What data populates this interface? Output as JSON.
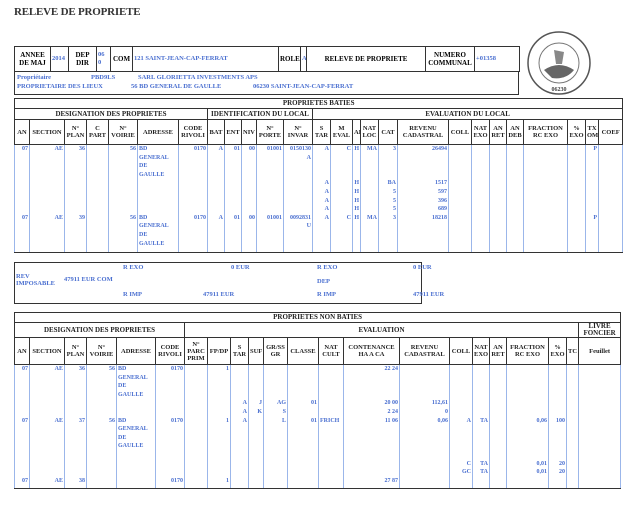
{
  "title": "RELEVE DE PROPRIETE",
  "header": {
    "annee_label": "ANNEE DE MAJ",
    "annee": "2014",
    "dep_label": "DEP DIR",
    "dep": "06 0",
    "com_label": "COM",
    "com": "121 SAINT-JEAN-CAP-FERRAT",
    "role_label": "ROLE",
    "role": "A",
    "doc_title": "RELEVE DE PROPRIETE",
    "numero_label": "NUMERO COMMUNAL",
    "numero": "+01358"
  },
  "owner": {
    "label": "Propriétaire",
    "code": "PBD9LS",
    "name": "SARL GLORIETTA INVESTMENTS APS",
    "role": "PROPRIETAIRE DES LIEUX",
    "address": "56 BD GENERAL DE GAULLE",
    "city": "06230 SAINT-JEAN-CAP-FERRAT"
  },
  "stamp": {
    "text": "MAIRIE DE SAINT-JEAN-CAP",
    "postcode": "06230"
  },
  "baties": {
    "title": "PROPRIETES BATIES",
    "groups": [
      "DESIGNATION DES PROPRIETES",
      "IDENTIFICATION DU LOCAL",
      "EVALUATION DU LOCAL"
    ],
    "columns": [
      {
        "key": "an",
        "label": "AN"
      },
      {
        "key": "section",
        "label": "SECTION"
      },
      {
        "key": "plan",
        "label": "N° PLAN"
      },
      {
        "key": "cpart",
        "label": "C PART"
      },
      {
        "key": "voirie",
        "label": "N° VOIRIE"
      },
      {
        "key": "adresse",
        "label": "ADRESSE"
      },
      {
        "key": "rivoli",
        "label": "CODE RIVOLI"
      },
      {
        "key": "bat",
        "label": "BAT"
      },
      {
        "key": "ent",
        "label": "ENT"
      },
      {
        "key": "niv",
        "label": "NIV"
      },
      {
        "key": "porte",
        "label": "N° PORTE"
      },
      {
        "key": "invar",
        "label": "N° INVAR"
      },
      {
        "key": "star",
        "label": "S TAR"
      },
      {
        "key": "meval",
        "label": "M EVAL"
      },
      {
        "key": "af",
        "label": "AF"
      },
      {
        "key": "natloc",
        "label": "NAT LOC"
      },
      {
        "key": "cat",
        "label": "CAT"
      },
      {
        "key": "revenu",
        "label": "REVENU CADASTRAL"
      },
      {
        "key": "coll",
        "label": "COLL"
      },
      {
        "key": "natexo",
        "label": "NAT EXO"
      },
      {
        "key": "anret",
        "label": "AN RET"
      },
      {
        "key": "andeb",
        "label": "AN DEB"
      },
      {
        "key": "fraction",
        "label": "FRACTION RC EXO"
      },
      {
        "key": "pexo",
        "label": "% EXO"
      },
      {
        "key": "txom",
        "label": "TX OM"
      },
      {
        "key": "coef",
        "label": "COEF"
      }
    ],
    "lines": [
      {
        "an": "07",
        "section": "AE",
        "plan": "36",
        "voirie": "56",
        "adresse": "BD",
        "rivoli": "0170",
        "bat": "A",
        "ent": "01",
        "niv": "00",
        "porte": "01001",
        "invar": "0150130",
        "star": "A",
        "meval": "C",
        "af": "H",
        "natloc": "MA",
        "cat": "3",
        "revenu": "26494",
        "txom": "P"
      },
      {
        "adresse": "GENERAL",
        "invar": "A"
      },
      {
        "adresse": "DE"
      },
      {
        "adresse": "GAULLE"
      },
      {
        "star": "A",
        "af": "H",
        "cat": "BA",
        "revenu": "1517"
      },
      {
        "star": "A",
        "af": "H",
        "cat": "5",
        "revenu": "597"
      },
      {
        "star": "A",
        "af": "H",
        "cat": "5",
        "revenu": "396"
      },
      {
        "star": "A",
        "af": "H",
        "cat": "5",
        "revenu": "689"
      },
      {
        "an": "07",
        "section": "AE",
        "plan": "39",
        "voirie": "56",
        "adresse": "BD",
        "rivoli": "0170",
        "bat": "A",
        "ent": "01",
        "niv": "00",
        "porte": "01001",
        "invar": "0092831",
        "star": "A",
        "meval": "C",
        "af": "H",
        "natloc": "MA",
        "cat": "3",
        "revenu": "18218",
        "txom": "P"
      },
      {
        "adresse": "GENERAL",
        "invar": "U"
      },
      {
        "adresse": "DE"
      },
      {
        "adresse": "GAULLE"
      }
    ]
  },
  "revenu": {
    "rexo1_label": "R EXO",
    "rexo1": "0 EUR",
    "rexo2_label": "R EXO",
    "rexo2": "0 EUR",
    "imposable_label": "REV IMPOSABLE",
    "imposable": "47911 EUR COM",
    "dep_label": "DEP",
    "rimp1_label": "R IMP",
    "rimp1": "47911 EUR",
    "rimp2_label": "R IMP",
    "rimp2": "47911 EUR"
  },
  "non_baties": {
    "title": "PROPRIETES NON BATIES",
    "groups": [
      "DESIGNATION DES PROPRIETES",
      "EVALUATION",
      "LIVRE FONCIER"
    ],
    "columns": [
      {
        "key": "an",
        "label": "AN"
      },
      {
        "key": "section",
        "label": "SECTION"
      },
      {
        "key": "plan",
        "label": "N° PLAN"
      },
      {
        "key": "voirie",
        "label": "N° VOIRIE"
      },
      {
        "key": "adresse",
        "label": "ADRESSE"
      },
      {
        "key": "rivoli",
        "label": "CODE RIVOLI"
      },
      {
        "key": "parc",
        "label": "N° PARC PRIM"
      },
      {
        "key": "fpdf",
        "label": "FP/DP"
      },
      {
        "key": "star",
        "label": "S TAR"
      },
      {
        "key": "suf",
        "label": "SUF"
      },
      {
        "key": "grss",
        "label": "GR/SS GR"
      },
      {
        "key": "classe",
        "label": "CLASSE"
      },
      {
        "key": "natcult",
        "label": "NAT CULT"
      },
      {
        "key": "contenance",
        "label": "CONTENANCE HA A CA"
      },
      {
        "key": "revenu",
        "label": "REVENU CADASTRAL"
      },
      {
        "key": "coll",
        "label": "COLL"
      },
      {
        "key": "natexo",
        "label": "NAT EXO"
      },
      {
        "key": "anret",
        "label": "AN RET"
      },
      {
        "key": "fraction",
        "label": "FRACTION RC EXO"
      },
      {
        "key": "pexo",
        "label": "% EXO"
      },
      {
        "key": "tc",
        "label": "TC"
      },
      {
        "key": "feuillet",
        "label": "Feuillet"
      }
    ],
    "lines": [
      {
        "an": "07",
        "section": "AE",
        "plan": "36",
        "voirie": "56",
        "adresse": "BD",
        "rivoli": "0170",
        "fpdf": "1",
        "contenance": "22 24"
      },
      {
        "adresse": "GENERAL"
      },
      {
        "adresse": "DE"
      },
      {
        "adresse": "GAULLE"
      },
      {
        "star": "A",
        "suf": "J",
        "grss": "AG",
        "classe": "01",
        "contenance": "20 00",
        "revenu": "112,61"
      },
      {
        "star": "A",
        "suf": "K",
        "grss": "S",
        "contenance": "2 24",
        "revenu": "0"
      },
      {
        "an": "07",
        "section": "AE",
        "plan": "37",
        "voirie": "56",
        "adresse": "BD",
        "rivoli": "0170",
        "fpdf": "1",
        "star": "A",
        "grss": "L",
        "classe": "01",
        "natcult": "FRICH",
        "contenance": "11 06",
        "revenu": "0,06",
        "coll": "A",
        "natexo": "TA",
        "fraction": "0,06",
        "pexo": "100"
      },
      {
        "adresse": "GENERAL"
      },
      {
        "adresse": "DE"
      },
      {
        "adresse": "GAULLE"
      },
      {},
      {
        "coll": "C",
        "natexo": "TA",
        "fraction": "0,01",
        "pexo": "20"
      },
      {
        "coll": "GC",
        "natexo": "TA",
        "fraction": "0,01",
        "pexo": "20"
      },
      {
        "an": "07",
        "section": "AE",
        "plan": "38",
        "rivoli": "0170",
        "fpdf": "1",
        "contenance": "27 87"
      }
    ]
  }
}
